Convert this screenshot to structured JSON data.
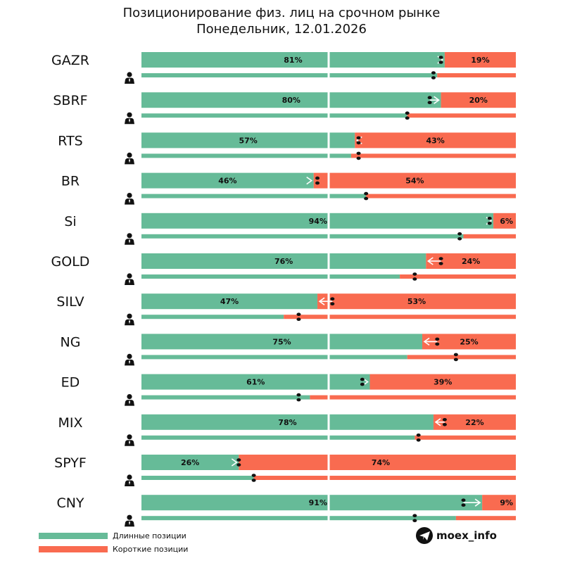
{
  "chart_data": {
    "type": "bar",
    "title": "Позиционирование физ. лиц на срочном рынке",
    "subtitle": "Понедельник, 12.01.2026",
    "colors": {
      "long": "#66bb98",
      "short": "#f96b50"
    },
    "series": [
      {
        "name": "Длинные позиции",
        "color": "#66bb98"
      },
      {
        "name": "Короткие позиции",
        "color": "#f96b50"
      }
    ],
    "categories": [
      "GAZR",
      "SBRF",
      "RTS",
      "BR",
      "Si",
      "GOLD",
      "SILV",
      "NG",
      "ED",
      "MIX",
      "SPYF",
      "CNY"
    ],
    "rows": [
      {
        "ticker": "GAZR",
        "long": 81,
        "short": 19,
        "long_label": "81%",
        "short_label": "19%",
        "prev_long": 80,
        "change": "up",
        "secondary_long": 79,
        "secondary_marker": 78
      },
      {
        "ticker": "SBRF",
        "long": 80,
        "short": 20,
        "long_label": "80%",
        "short_label": "20%",
        "prev_long": 77,
        "change": "up",
        "secondary_long": 71,
        "secondary_marker": 71
      },
      {
        "ticker": "RTS",
        "long": 57,
        "short": 43,
        "long_label": "57%",
        "short_label": "43%",
        "prev_long": 58,
        "change": "down",
        "secondary_long": 56,
        "secondary_marker": 58
      },
      {
        "ticker": "BR",
        "long": 46,
        "short": 54,
        "long_label": "46%",
        "short_label": "54%",
        "prev_long": 47,
        "change": "up",
        "secondary_long": 60,
        "secondary_marker": 60
      },
      {
        "ticker": "Si",
        "long": 94,
        "short": 6,
        "long_label": "94%",
        "short_label": "6%",
        "prev_long": 93,
        "change": "up",
        "secondary_long": 86,
        "secondary_marker": 85
      },
      {
        "ticker": "GOLD",
        "long": 76,
        "short": 24,
        "long_label": "76%",
        "short_label": "24%",
        "prev_long": 80,
        "change": "down",
        "secondary_long": 69,
        "secondary_marker": 73
      },
      {
        "ticker": "SILV",
        "long": 47,
        "short": 53,
        "long_label": "47%",
        "short_label": "53%",
        "prev_long": 51,
        "change": "down",
        "secondary_long": 38,
        "secondary_marker": 42
      },
      {
        "ticker": "NG",
        "long": 75,
        "short": 25,
        "long_label": "75%",
        "short_label": "25%",
        "prev_long": 79,
        "change": "down",
        "secondary_long": 71,
        "secondary_marker": 84
      },
      {
        "ticker": "ED",
        "long": 61,
        "short": 39,
        "long_label": "61%",
        "short_label": "39%",
        "prev_long": 59,
        "change": "up",
        "secondary_long": 45,
        "secondary_marker": 42
      },
      {
        "ticker": "MIX",
        "long": 78,
        "short": 22,
        "long_label": "78%",
        "short_label": "22%",
        "prev_long": 81,
        "change": "down",
        "secondary_long": 73,
        "secondary_marker": 74
      },
      {
        "ticker": "SPYF",
        "long": 26,
        "short": 74,
        "long_label": "26%",
        "short_label": "74%",
        "prev_long": 26,
        "change": "up",
        "secondary_long": 30,
        "secondary_marker": 30
      },
      {
        "ticker": "CNY",
        "long": 91,
        "short": 9,
        "long_label": "91%",
        "short_label": "9%",
        "prev_long": 86,
        "change": "up",
        "secondary_long": 84,
        "secondary_marker": 73
      }
    ],
    "xlim": [
      0,
      100
    ],
    "grid": false,
    "legend_position": "bottom-left"
  },
  "icons": {
    "row_icon": "person-icon",
    "brand_icon": "telegram-icon"
  },
  "legend": {
    "long_label": "Длинные позиции",
    "short_label": "Короткие позиции"
  },
  "brand": {
    "name": "moex_info"
  }
}
